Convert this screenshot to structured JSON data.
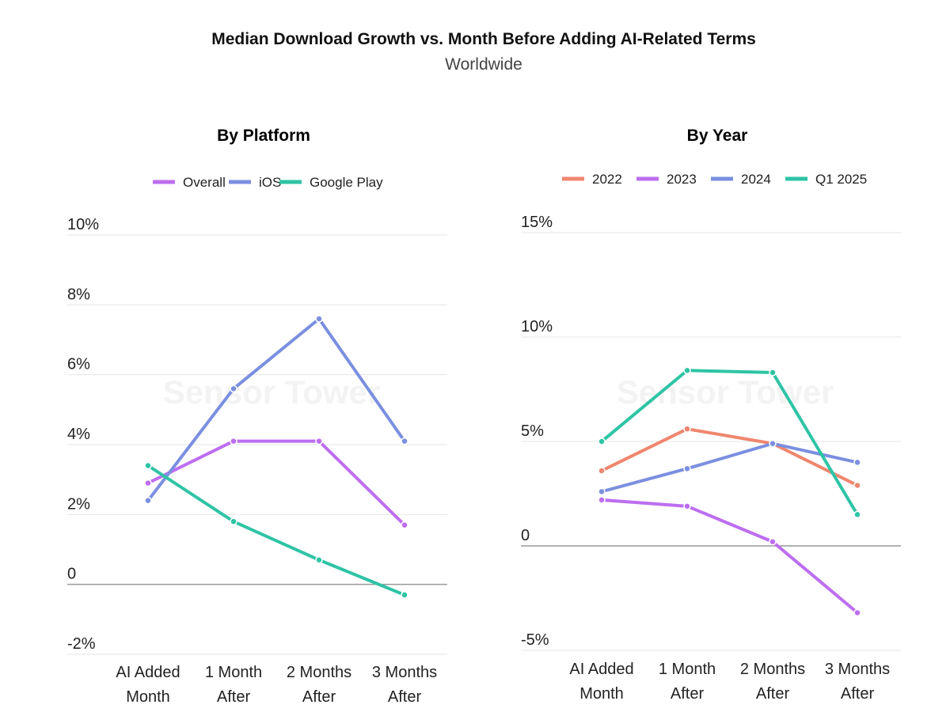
{
  "title": "Median Download Growth vs. Month Before Adding AI-Related Terms",
  "subtitle": "Worldwide",
  "watermark": "Sensor Tower",
  "chart_data": [
    {
      "type": "line",
      "title": "By Platform",
      "categories": [
        [
          "AI Added",
          "Month"
        ],
        [
          "1 Month",
          "After"
        ],
        [
          "2 Months",
          "After"
        ],
        [
          "3 Months",
          "After"
        ]
      ],
      "ylim": [
        -2,
        10
      ],
      "yticks": [
        -2,
        0,
        2,
        4,
        6,
        8,
        10
      ],
      "ytick_labels": [
        "-2%",
        "0",
        "2%",
        "4%",
        "6%",
        "8%",
        "10%"
      ],
      "grid": true,
      "legend": "top",
      "series": [
        {
          "name": "Overall",
          "color": "#bd6ef0",
          "values": [
            2.9,
            4.1,
            4.1,
            1.7
          ]
        },
        {
          "name": "iOS",
          "color": "#7b8fe0",
          "values": [
            2.4,
            5.6,
            7.6,
            4.1
          ]
        },
        {
          "name": "Google Play",
          "color": "#2ec4a5",
          "values": [
            3.4,
            1.8,
            0.7,
            -0.3
          ]
        }
      ]
    },
    {
      "type": "line",
      "title": "By Year",
      "categories": [
        [
          "AI Added",
          "Month"
        ],
        [
          "1 Month",
          "After"
        ],
        [
          "2 Months",
          "After"
        ],
        [
          "3 Months",
          "After"
        ]
      ],
      "ylim": [
        -5,
        15
      ],
      "yticks": [
        -5,
        0,
        5,
        10,
        15
      ],
      "ytick_labels": [
        "-5%",
        "0",
        "5%",
        "10%",
        "15%"
      ],
      "grid": true,
      "legend": "top",
      "series": [
        {
          "name": "2022",
          "color": "#f0866f",
          "values": [
            3.6,
            5.6,
            4.9,
            2.9
          ]
        },
        {
          "name": "2023",
          "color": "#bd6ef0",
          "values": [
            2.2,
            1.9,
            0.2,
            -3.2
          ]
        },
        {
          "name": "2024",
          "color": "#7b8fe0",
          "values": [
            2.6,
            3.7,
            4.9,
            4.0
          ]
        },
        {
          "name": "Q1 2025",
          "color": "#2ec4a5",
          "values": [
            5.0,
            8.4,
            8.3,
            1.5
          ]
        }
      ]
    }
  ]
}
